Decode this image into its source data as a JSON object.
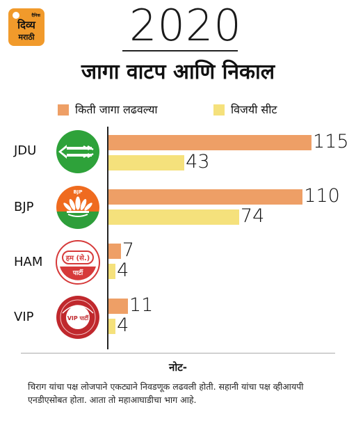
{
  "logo": {
    "small": "दैनिक",
    "main": "दिव्य",
    "sub": "मराठी"
  },
  "year": "2020",
  "title": "जागा वाटप आणि निकाल",
  "colors": {
    "seats_contested": "#ee9f66",
    "seats_won": "#f5e17c",
    "logo_bg": "#f19a2b"
  },
  "chart_data": {
    "type": "bar",
    "orientation": "horizontal",
    "categories": [
      "JDU",
      "BJP",
      "HAM",
      "VIP"
    ],
    "series": [
      {
        "name": "किती जागा लढवल्या",
        "values": [
          115,
          110,
          7,
          11
        ]
      },
      {
        "name": "विजयी सीट",
        "values": [
          43,
          74,
          4,
          4
        ]
      }
    ],
    "legend_position": "top",
    "grid": false,
    "xlim": [
      0,
      115
    ]
  },
  "emblems": {
    "ham_top": "हम (से.)",
    "ham_bottom": "पार्टी",
    "vip_center": "VIP पार्टी",
    "bjp_top": "BJP"
  },
  "note": {
    "title": "नोट-",
    "text": "चिराग यांचा पक्ष लोजपाने एकट्याने निवडणूक लढवली होती. सहानी यांचा पक्ष व्हीआयपी एनडीएसोबत होता. आता तो महाआघाडीचा भाग आहे."
  }
}
